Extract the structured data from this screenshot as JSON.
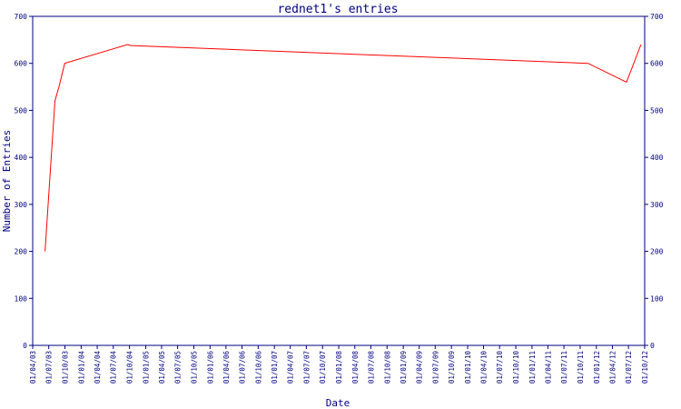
{
  "chart_data": {
    "type": "line",
    "title": "rednet1's entries",
    "xlabel": "Date",
    "ylabel": "Number of Entries",
    "ylim": [
      0,
      700
    ],
    "y_ticks": [
      "0",
      "100",
      "200",
      "300",
      "400",
      "500",
      "600",
      "700"
    ],
    "x_ticks": [
      "01/04/03",
      "01/07/03",
      "01/10/03",
      "01/01/04",
      "01/04/04",
      "01/07/04",
      "01/10/04",
      "01/01/05",
      "01/04/05",
      "01/07/05",
      "01/10/05",
      "01/01/06",
      "01/04/06",
      "01/07/06",
      "01/10/06",
      "01/01/07",
      "01/04/07",
      "01/07/07",
      "01/10/07",
      "01/01/08",
      "01/04/08",
      "01/07/08",
      "01/10/08",
      "01/01/09",
      "01/04/09",
      "01/07/09",
      "01/10/09",
      "01/01/10",
      "01/04/10",
      "01/07/10",
      "01/10/10",
      "01/01/11",
      "01/04/11",
      "01/07/11",
      "01/10/11",
      "01/01/12",
      "01/04/12",
      "01/07/12",
      "01/10/12"
    ],
    "grid": false,
    "right_axis": true,
    "line_color": "#ff0000",
    "axis_color": "#000080",
    "series": [
      {
        "points": [
          {
            "x": "2003-06-10",
            "y": 200
          },
          {
            "x": "2003-08-05",
            "y": 520
          },
          {
            "x": "2003-08-28",
            "y": 550
          },
          {
            "x": "2003-09-30",
            "y": 600
          },
          {
            "x": "2004-09-20",
            "y": 640
          },
          {
            "x": "2004-10-10",
            "y": 638
          },
          {
            "x": "2011-11-15",
            "y": 600
          },
          {
            "x": "2012-06-20",
            "y": 560
          },
          {
            "x": "2012-09-10",
            "y": 640
          }
        ]
      }
    ]
  }
}
